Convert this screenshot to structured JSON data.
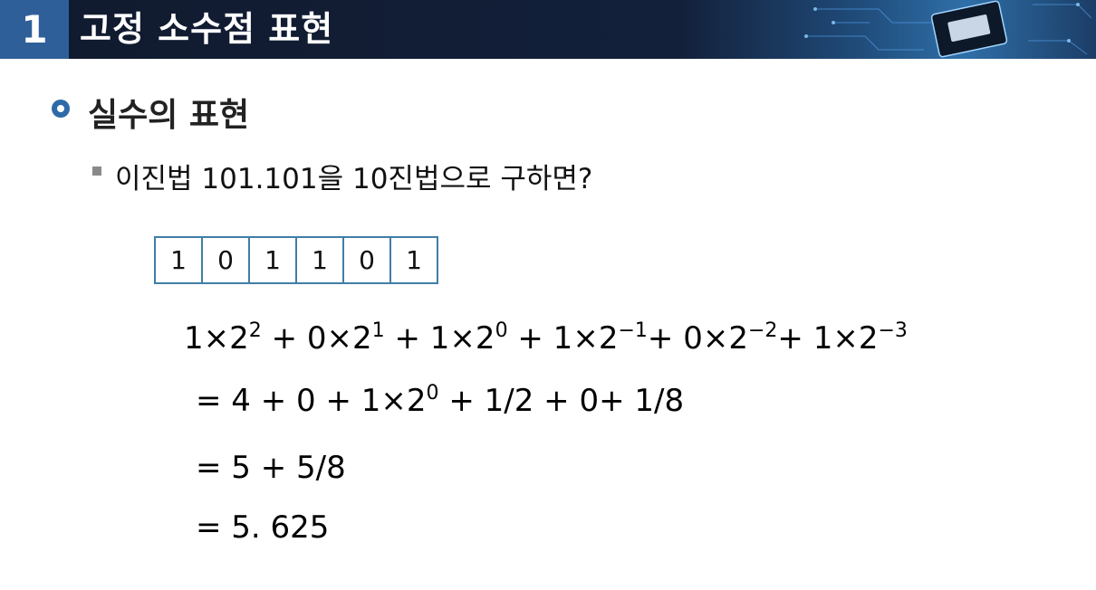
{
  "header": {
    "number": "1",
    "title": "고정 소수점 표현",
    "accent_color": "#2f5f99",
    "bar_color": "#13203a"
  },
  "section": {
    "title": "실수의 표현",
    "question": "이진법 101.101을 10진법으로 구하면?"
  },
  "bits": [
    "1",
    "0",
    "1",
    "1",
    "0",
    "1"
  ],
  "expression": {
    "terms": [
      {
        "coef": "1",
        "base": "2",
        "exp": "2",
        "next": " + "
      },
      {
        "coef": "0",
        "base": "2",
        "exp": "1",
        "next": " + "
      },
      {
        "coef": "1",
        "base": "2",
        "exp": "0",
        "next": " + "
      },
      {
        "coef": "1",
        "base": "2",
        "exp": "−1",
        "next": "+ "
      },
      {
        "coef": "0",
        "base": "2",
        "exp": "−2",
        "next": "+ "
      },
      {
        "coef": "1",
        "base": "2",
        "exp": "−3",
        "next": ""
      }
    ],
    "times": "×"
  },
  "step2": {
    "prefix": "= 4 + 0 + 1",
    "times": "×",
    "base": "2",
    "exp": "0",
    "suffix": " + 1/2 + 0+ 1/8"
  },
  "step3": "= 5 + 5/8",
  "step4": "= 5. 625"
}
